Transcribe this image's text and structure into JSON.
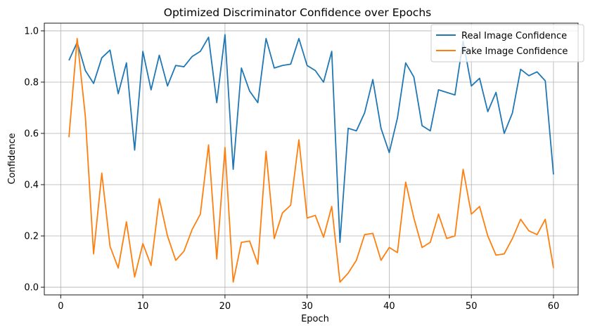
{
  "chart_data": {
    "type": "line",
    "title": "Optimized Discriminator Confidence over Epochs",
    "xlabel": "Epoch",
    "ylabel": "Confidence",
    "xlim": [
      -2,
      63
    ],
    "ylim": [
      -0.03,
      1.03
    ],
    "xticks": [
      0,
      10,
      20,
      30,
      40,
      50,
      60
    ],
    "yticks": [
      0.0,
      0.2,
      0.4,
      0.6,
      0.8,
      1.0
    ],
    "grid": true,
    "legend": "top-right",
    "x": [
      1,
      2,
      3,
      4,
      5,
      6,
      7,
      8,
      9,
      10,
      11,
      12,
      13,
      14,
      15,
      16,
      17,
      18,
      19,
      20,
      21,
      22,
      23,
      24,
      25,
      26,
      27,
      28,
      29,
      30,
      31,
      32,
      33,
      34,
      35,
      36,
      37,
      38,
      39,
      40,
      41,
      42,
      43,
      44,
      45,
      46,
      47,
      48,
      49,
      50,
      51,
      52,
      53,
      54,
      55,
      56,
      57,
      58,
      59,
      60
    ],
    "series": [
      {
        "name": "Real Image Confidence",
        "color": "#1f77b4",
        "values": [
          0.885,
          0.955,
          0.845,
          0.795,
          0.895,
          0.925,
          0.755,
          0.875,
          0.535,
          0.92,
          0.77,
          0.905,
          0.785,
          0.865,
          0.86,
          0.9,
          0.92,
          0.975,
          0.72,
          0.985,
          0.46,
          0.855,
          0.765,
          0.72,
          0.97,
          0.855,
          0.865,
          0.87,
          0.97,
          0.865,
          0.845,
          0.8,
          0.92,
          0.175,
          0.62,
          0.61,
          0.68,
          0.81,
          0.62,
          0.525,
          0.66,
          0.875,
          0.82,
          0.63,
          0.61,
          0.77,
          0.76,
          0.75,
          0.96,
          0.785,
          0.815,
          0.685,
          0.76,
          0.6,
          0.68,
          0.85,
          0.825,
          0.84,
          0.805,
          0.44
        ]
      },
      {
        "name": "Fake Image Confidence",
        "color": "#ff7f0e",
        "values": [
          0.585,
          0.97,
          0.665,
          0.13,
          0.445,
          0.16,
          0.075,
          0.255,
          0.04,
          0.17,
          0.085,
          0.345,
          0.2,
          0.105,
          0.14,
          0.225,
          0.285,
          0.555,
          0.11,
          0.545,
          0.02,
          0.175,
          0.18,
          0.09,
          0.53,
          0.19,
          0.29,
          0.32,
          0.575,
          0.27,
          0.28,
          0.195,
          0.315,
          0.02,
          0.055,
          0.105,
          0.205,
          0.21,
          0.105,
          0.155,
          0.135,
          0.41,
          0.27,
          0.155,
          0.175,
          0.285,
          0.19,
          0.2,
          0.46,
          0.285,
          0.315,
          0.2,
          0.125,
          0.13,
          0.19,
          0.265,
          0.22,
          0.205,
          0.265,
          0.075
        ]
      }
    ]
  }
}
